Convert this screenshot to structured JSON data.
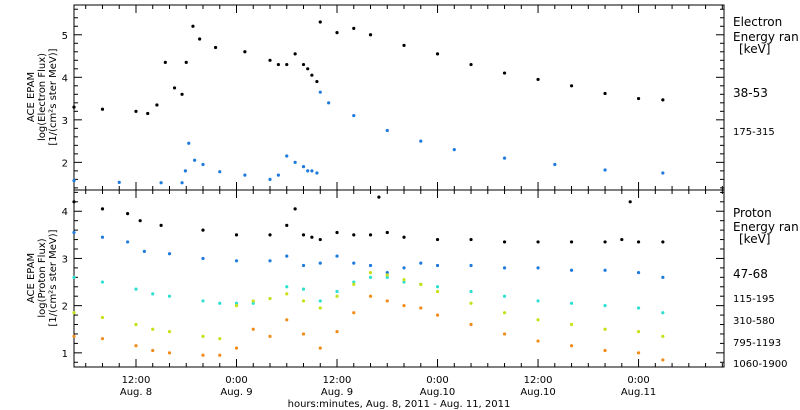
{
  "xlabel": "hours:minutes, Aug. 8, 2011 - Aug. 11, 2011",
  "x_ticks": [
    {
      "hours": 12,
      "time": "12:00",
      "day": "Aug. 8"
    },
    {
      "hours": 24,
      "time": "0:00",
      "day": "Aug. 9"
    },
    {
      "hours": 36,
      "time": "12:00",
      "day": "Aug. 9"
    },
    {
      "hours": 48,
      "time": "0:00",
      "day": "Aug.10"
    },
    {
      "hours": 60,
      "time": "12:00",
      "day": "Aug.10"
    },
    {
      "hours": 72,
      "time": "0:00",
      "day": "Aug.11"
    }
  ],
  "chart_data": [
    {
      "type": "scatter",
      "panel": "electron",
      "ylabel": [
        "ACE EPAM",
        "log(Electron Flux)",
        "[1/(cm²s ster MeV)]"
      ],
      "legend_title": [
        "Electron",
        "Energy ran",
        "[keV]"
      ],
      "xlim_hours": [
        4.6,
        82.2
      ],
      "ylim": [
        1.35,
        5.7
      ],
      "yticks": [
        2,
        3,
        4,
        5
      ],
      "series": [
        {
          "name": "38-53",
          "color": "#000000",
          "x": [
            4.6,
            8,
            12,
            13.4,
            14.5,
            15.5,
            16.6,
            17.5,
            18,
            18.8,
            19.6,
            21.5,
            25,
            28,
            29,
            30,
            31,
            32,
            32.5,
            33,
            33.6,
            34,
            36,
            38,
            40,
            44,
            48,
            52,
            56,
            60,
            64,
            68,
            72,
            74.9
          ],
          "y": [
            3.3,
            3.25,
            3.2,
            3.15,
            3.35,
            4.35,
            3.75,
            3.6,
            4.35,
            5.2,
            4.9,
            4.7,
            4.6,
            4.4,
            4.3,
            4.3,
            4.55,
            4.3,
            4.2,
            4.05,
            3.9,
            5.3,
            5.05,
            5.15,
            5.0,
            4.75,
            4.55,
            4.3,
            4.1,
            3.95,
            3.8,
            3.62,
            3.5,
            3.47
          ]
        },
        {
          "name": "175-315",
          "color": "#1e7bdc",
          "x": [
            4.6,
            10,
            15,
            17.5,
            17.9,
            18.3,
            19,
            20,
            22,
            25,
            28,
            29,
            30,
            31,
            32,
            32.5,
            33,
            33.6,
            34,
            35,
            38,
            42,
            46,
            50,
            56,
            62,
            68,
            74.9
          ],
          "y": [
            1.57,
            1.53,
            1.52,
            1.52,
            1.8,
            2.45,
            2.05,
            1.95,
            1.78,
            1.7,
            1.6,
            1.7,
            2.15,
            2.0,
            1.9,
            1.8,
            1.8,
            1.75,
            3.65,
            3.4,
            3.1,
            2.75,
            2.5,
            2.3,
            2.1,
            1.95,
            1.82,
            1.75
          ]
        }
      ]
    },
    {
      "type": "scatter",
      "panel": "proton",
      "ylabel": [
        "ACE EPAM",
        "log(Proton Flux)",
        "[1/(cm²s ster MeV)]"
      ],
      "legend_title": [
        "Proton",
        "Energy ran",
        "[keV]"
      ],
      "xlim_hours": [
        4.6,
        82.2
      ],
      "ylim": [
        0.7,
        4.45
      ],
      "yticks": [
        1,
        2,
        3,
        4
      ],
      "series": [
        {
          "name": "47-68",
          "color": "#000000",
          "x": [
            4.6,
            8,
            11,
            12.5,
            15,
            20,
            24,
            28,
            30,
            31,
            32,
            33,
            34,
            36,
            38,
            40,
            41,
            42,
            44,
            48,
            52,
            56,
            60,
            64,
            68,
            70,
            71,
            72,
            74.9
          ],
          "y": [
            4.2,
            4.05,
            3.95,
            3.8,
            3.7,
            3.6,
            3.5,
            3.5,
            3.7,
            4.05,
            3.5,
            3.45,
            3.4,
            3.55,
            3.5,
            3.5,
            4.3,
            3.55,
            3.45,
            3.4,
            3.4,
            3.35,
            3.35,
            3.35,
            3.35,
            3.4,
            4.2,
            3.35,
            3.35
          ]
        },
        {
          "name": "115-195",
          "color": "#1e7bdc",
          "x": [
            4.6,
            8,
            11,
            13,
            16,
            20,
            24,
            28,
            30,
            32,
            34,
            36,
            38,
            40,
            42,
            44,
            46,
            48,
            52,
            56,
            60,
            64,
            68,
            72,
            74.9
          ],
          "y": [
            3.55,
            3.45,
            3.35,
            3.15,
            3.1,
            3.0,
            2.95,
            2.95,
            3.05,
            2.85,
            2.9,
            3.05,
            2.9,
            2.85,
            2.7,
            2.8,
            2.9,
            2.85,
            2.85,
            2.8,
            2.8,
            2.75,
            2.75,
            2.7,
            2.6
          ]
        },
        {
          "name": "310-580",
          "color": "#2de0d0",
          "x": [
            4.6,
            8,
            12,
            14,
            16,
            20,
            22,
            24,
            26,
            28,
            30,
            32,
            34,
            36,
            38,
            40,
            42,
            44,
            46,
            48,
            52,
            56,
            60,
            64,
            68,
            72,
            74.9
          ],
          "y": [
            2.6,
            2.5,
            2.35,
            2.25,
            2.2,
            2.1,
            2.05,
            2.05,
            2.05,
            2.15,
            2.4,
            2.35,
            2.1,
            2.3,
            2.5,
            2.6,
            2.6,
            2.5,
            2.45,
            2.4,
            2.3,
            2.2,
            2.1,
            2.05,
            2.0,
            1.95,
            1.85
          ]
        },
        {
          "name": "795-1193",
          "color": "#c8e016",
          "x": [
            4.6,
            8,
            12,
            14,
            16,
            20,
            22,
            24,
            26,
            28,
            30,
            32,
            34,
            36,
            38,
            40,
            42,
            44,
            46,
            48,
            52,
            56,
            60,
            64,
            68,
            72,
            74.9
          ],
          "y": [
            1.85,
            1.75,
            1.6,
            1.5,
            1.45,
            1.35,
            1.3,
            2.0,
            2.1,
            2.15,
            2.25,
            2.1,
            1.95,
            2.2,
            2.45,
            2.7,
            2.65,
            2.55,
            2.45,
            2.3,
            2.05,
            1.85,
            1.7,
            1.6,
            1.5,
            1.45,
            1.35
          ]
        },
        {
          "name": "1060-1900",
          "color": "#f08c1a",
          "x": [
            4.6,
            8,
            12,
            14,
            16,
            20,
            22,
            24,
            26,
            28,
            30,
            32,
            34,
            36,
            38,
            40,
            42,
            44,
            46,
            48,
            52,
            56,
            60,
            64,
            68,
            72,
            74.9
          ],
          "y": [
            1.35,
            1.3,
            1.15,
            1.05,
            1.0,
            0.95,
            0.95,
            1.1,
            1.5,
            1.35,
            1.7,
            1.4,
            1.1,
            1.45,
            1.85,
            2.2,
            2.1,
            2.0,
            1.95,
            1.8,
            1.6,
            1.4,
            1.25,
            1.15,
            1.05,
            1.0,
            0.85
          ]
        }
      ]
    }
  ]
}
